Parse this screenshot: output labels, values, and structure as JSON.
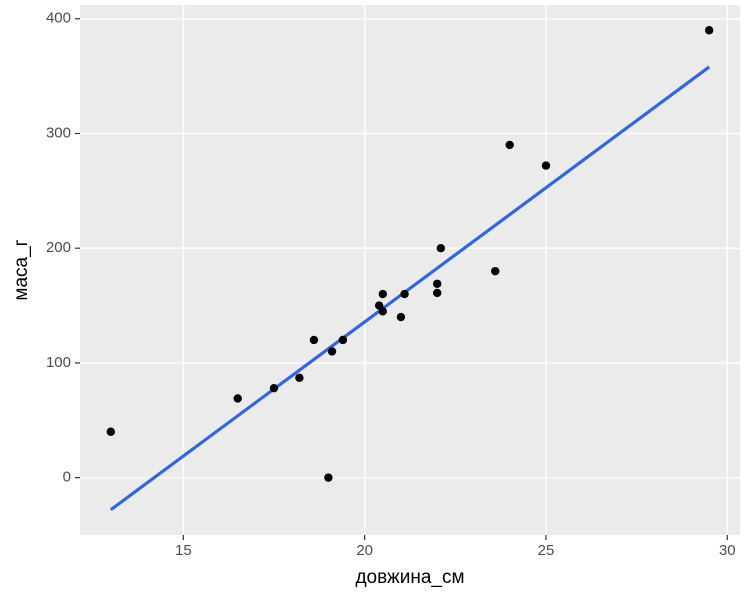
{
  "chart_data": {
    "type": "scatter",
    "x_label": "довжина_см",
    "y_label": "маса_г",
    "series": [
      {
        "color": "#000000",
        "x": [
          13,
          16.5,
          17.5,
          18.2,
          18.6,
          19.0,
          19.1,
          19.4,
          20.4,
          20.5,
          20.5,
          21.0,
          21.1,
          22.0,
          22.0,
          22.1,
          23.6,
          24.0,
          25.0,
          29.5
        ],
        "values": [
          40,
          69,
          78,
          87,
          120,
          0,
          110,
          120,
          150,
          160,
          145,
          140,
          160,
          169,
          161,
          200,
          180,
          290,
          272,
          390
        ]
      }
    ],
    "trend_line": {
      "color": "#3366dd",
      "x": [
        13,
        29.5
      ],
      "values": [
        -28,
        358
      ]
    },
    "xlim": [
      12.15,
      30.35
    ],
    "xticks": [
      15,
      20,
      25,
      30
    ],
    "ylim": [
      -50,
      412
    ],
    "yticks": [
      0,
      100,
      200,
      300,
      400
    ],
    "grid": true
  }
}
